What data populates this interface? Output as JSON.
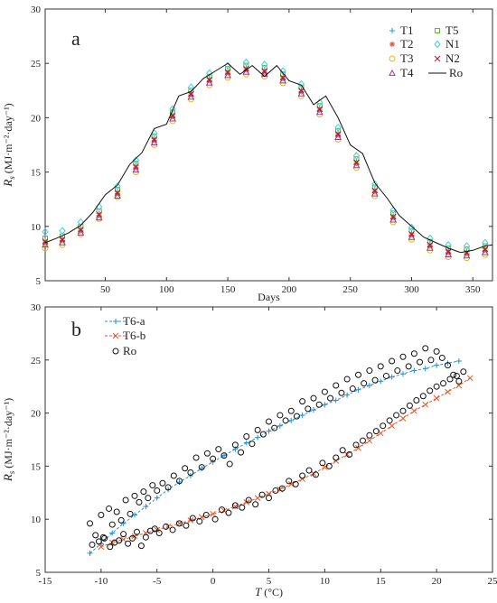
{
  "chart_data": [
    {
      "panel_label": "a",
      "type": "scatter",
      "xlabel": "Days",
      "ylabel": {
        "symbol": "R",
        "sub": "s",
        "unit": "(MJ·m⁻²·day⁻¹)"
      },
      "xlim": [
        1,
        366
      ],
      "ylim": [
        5,
        30
      ],
      "xticks": [
        50,
        100,
        150,
        200,
        250,
        300,
        350
      ],
      "yticks": [
        5,
        10,
        15,
        20,
        25,
        30
      ],
      "legend_position": "top-right",
      "series": [
        {
          "name": "T1",
          "marker": "plus",
          "color": "#1f9bd7",
          "days": [
            1,
            15,
            30,
            45,
            60,
            75,
            90,
            105,
            120,
            135,
            150,
            165,
            180,
            195,
            210,
            225,
            240,
            255,
            270,
            285,
            300,
            315,
            330,
            345,
            360
          ],
          "values": [
            8.7,
            8.9,
            9.8,
            11.2,
            13.2,
            15.6,
            18.1,
            20.3,
            22.3,
            23.6,
            24.3,
            24.6,
            24.4,
            23.8,
            22.6,
            20.9,
            18.6,
            16.0,
            13.4,
            11.0,
            9.4,
            8.4,
            7.8,
            7.7,
            8.0
          ]
        },
        {
          "name": "T2",
          "marker": "asterisk",
          "color": "#e2553a",
          "days": [
            1,
            15,
            30,
            45,
            60,
            75,
            90,
            105,
            120,
            135,
            150,
            165,
            180,
            195,
            210,
            225,
            240,
            255,
            270,
            285,
            300,
            315,
            330,
            345,
            360
          ],
          "values": [
            8.5,
            8.7,
            9.6,
            11.0,
            13.0,
            15.4,
            17.9,
            20.1,
            22.1,
            23.4,
            24.1,
            24.4,
            24.2,
            23.6,
            22.4,
            20.7,
            18.4,
            15.8,
            13.2,
            10.8,
            9.2,
            8.2,
            7.6,
            7.5,
            7.8
          ]
        },
        {
          "name": "T3",
          "marker": "circle",
          "color": "#f0b21b",
          "days": [
            1,
            15,
            30,
            45,
            60,
            75,
            90,
            105,
            120,
            135,
            150,
            165,
            180,
            195,
            210,
            225,
            240,
            255,
            270,
            285,
            300,
            315,
            330,
            345,
            360
          ],
          "values": [
            8.0,
            8.3,
            9.3,
            10.7,
            12.7,
            15.0,
            17.5,
            19.7,
            21.7,
            23.0,
            23.7,
            24.0,
            23.8,
            23.2,
            22.0,
            20.3,
            18.0,
            15.4,
            12.8,
            10.4,
            8.8,
            7.8,
            7.2,
            7.1,
            7.4
          ]
        },
        {
          "name": "T4",
          "marker": "triangle",
          "color": "#8e3f97",
          "days": [
            1,
            15,
            30,
            45,
            60,
            75,
            90,
            105,
            120,
            135,
            150,
            165,
            180,
            195,
            210,
            225,
            240,
            255,
            270,
            285,
            300,
            315,
            330,
            345,
            360
          ],
          "values": [
            8.3,
            8.5,
            9.4,
            10.8,
            12.8,
            15.2,
            17.7,
            19.9,
            21.9,
            23.2,
            23.9,
            24.2,
            24.0,
            23.4,
            22.2,
            20.5,
            18.2,
            15.6,
            13.0,
            10.6,
            9.0,
            8.0,
            7.4,
            7.3,
            7.6
          ]
        },
        {
          "name": "T5",
          "marker": "square",
          "color": "#6ab43e",
          "days": [
            1,
            15,
            30,
            45,
            60,
            75,
            90,
            105,
            120,
            135,
            150,
            165,
            180,
            195,
            210,
            225,
            240,
            255,
            270,
            285,
            300,
            315,
            330,
            345,
            360
          ],
          "values": [
            8.9,
            9.1,
            10.0,
            11.4,
            13.4,
            15.8,
            18.3,
            20.5,
            22.5,
            23.8,
            24.5,
            24.8,
            24.6,
            24.0,
            22.8,
            21.1,
            18.8,
            16.2,
            13.6,
            11.2,
            9.6,
            8.6,
            8.0,
            7.9,
            8.2
          ]
        },
        {
          "name": "N1",
          "marker": "diamond",
          "color": "#3fd0e0",
          "days": [
            1,
            15,
            30,
            45,
            60,
            75,
            90,
            105,
            120,
            135,
            150,
            165,
            180,
            195,
            210,
            225,
            240,
            255,
            270,
            285,
            300,
            315,
            330,
            345,
            360
          ],
          "values": [
            9.5,
            9.6,
            10.4,
            11.8,
            13.7,
            16.1,
            18.6,
            20.8,
            22.8,
            24.1,
            24.8,
            25.1,
            24.9,
            24.3,
            23.1,
            21.4,
            19.1,
            16.5,
            13.9,
            11.5,
            9.9,
            8.9,
            8.3,
            8.2,
            8.5
          ]
        },
        {
          "name": "N2",
          "marker": "cross",
          "color": "#b2182b",
          "days": [
            1,
            15,
            30,
            45,
            60,
            75,
            90,
            105,
            120,
            135,
            150,
            165,
            180,
            195,
            210,
            225,
            240,
            255,
            270,
            285,
            300,
            315,
            330,
            345,
            360
          ],
          "values": [
            8.6,
            8.8,
            9.7,
            11.1,
            13.1,
            15.5,
            18.0,
            20.2,
            22.2,
            23.5,
            24.2,
            24.5,
            24.3,
            23.7,
            22.5,
            20.8,
            18.5,
            15.9,
            13.3,
            10.9,
            9.3,
            8.3,
            7.7,
            7.6,
            7.9
          ]
        },
        {
          "name": "Ro",
          "marker": "line",
          "color": "#111111",
          "days": [
            1,
            10,
            20,
            30,
            40,
            50,
            60,
            70,
            80,
            90,
            100,
            110,
            120,
            130,
            140,
            150,
            160,
            170,
            180,
            190,
            200,
            210,
            220,
            230,
            240,
            250,
            260,
            270,
            280,
            290,
            300,
            310,
            320,
            330,
            340,
            350,
            360,
            366
          ],
          "values": [
            8.5,
            8.9,
            9.4,
            10.1,
            11.3,
            12.9,
            13.8,
            15.7,
            16.8,
            19.0,
            19.4,
            22.0,
            22.4,
            23.6,
            24.3,
            25.0,
            24.0,
            24.8,
            23.8,
            24.8,
            23.4,
            23.0,
            21.2,
            22.0,
            20.0,
            17.5,
            16.7,
            14.0,
            12.6,
            11.0,
            10.0,
            9.0,
            8.5,
            8.0,
            7.6,
            7.8,
            8.2,
            8.3
          ]
        }
      ]
    },
    {
      "panel_label": "b",
      "type": "scatter",
      "xlabel": {
        "symbol": "T",
        "unit": "(°C)"
      },
      "ylabel": {
        "symbol": "R",
        "sub": "s",
        "unit": "(MJ·m⁻²·day⁻¹)"
      },
      "xlim": [
        -15,
        25
      ],
      "ylim": [
        5,
        30
      ],
      "xticks": [
        -15,
        -10,
        -5,
        0,
        5,
        10,
        15,
        20,
        25
      ],
      "yticks": [
        5,
        10,
        15,
        20,
        25,
        30
      ],
      "legend_position": "top-left",
      "series": [
        {
          "name": "T6-a",
          "marker": "line-plus",
          "color": "#2b8fd6",
          "x": [
            -11.0,
            -10.0,
            -9.0,
            -8.0,
            -7.0,
            -6.0,
            -5.0,
            -4.0,
            -3.0,
            -2.0,
            -1.0,
            0.0,
            1.0,
            2.0,
            3.0,
            4.0,
            5.0,
            6.0,
            7.0,
            8.0,
            9.0,
            10.0,
            11.0,
            12.0,
            13.0,
            14.0,
            15.0,
            16.0,
            17.0,
            18.0,
            19.0,
            20.0,
            21.0,
            22.0
          ],
          "y": [
            6.8,
            7.7,
            8.7,
            9.6,
            10.4,
            11.2,
            12.0,
            12.8,
            13.5,
            14.1,
            14.8,
            15.4,
            16.0,
            16.6,
            17.2,
            17.7,
            18.3,
            18.8,
            19.3,
            19.8,
            20.3,
            20.8,
            21.2,
            21.7,
            22.2,
            22.6,
            23.0,
            23.4,
            23.7,
            24.0,
            24.2,
            24.5,
            24.7,
            24.9
          ]
        },
        {
          "name": "T6-b",
          "marker": "line-x",
          "color": "#e05a2c",
          "x": [
            -10.0,
            -9.0,
            -8.0,
            -7.0,
            -6.0,
            -5.0,
            -4.0,
            -3.0,
            -2.0,
            -1.0,
            0.0,
            1.0,
            2.0,
            3.0,
            4.0,
            5.0,
            6.0,
            7.0,
            8.0,
            9.0,
            10.0,
            11.0,
            12.0,
            13.0,
            14.0,
            15.0,
            16.0,
            17.0,
            18.0,
            19.0,
            20.0,
            21.0,
            22.0,
            23.0
          ],
          "y": [
            7.4,
            7.8,
            8.1,
            8.4,
            8.7,
            9.0,
            9.3,
            9.6,
            9.9,
            10.2,
            10.5,
            10.8,
            11.2,
            11.6,
            12.0,
            12.4,
            12.8,
            13.3,
            13.8,
            14.3,
            14.9,
            15.5,
            16.1,
            16.7,
            17.4,
            18.1,
            18.8,
            19.5,
            20.2,
            20.8,
            21.4,
            22.0,
            22.6,
            23.3
          ]
        },
        {
          "name": "Ro",
          "marker": "open-circle",
          "color": "#111111",
          "x": [
            -11,
            -10.5,
            -10,
            -9.7,
            -9.3,
            -9,
            -8.6,
            -8.2,
            -7.8,
            -7.4,
            -7,
            -6.6,
            -6.2,
            -5.8,
            -5.4,
            -5,
            -4.5,
            -4,
            -3.5,
            -3,
            -2.5,
            -2,
            -1.5,
            -1,
            -0.5,
            0,
            0.5,
            1,
            1.5,
            2,
            2.5,
            3,
            3.5,
            4,
            4.5,
            5,
            5.5,
            6,
            6.5,
            7,
            7.5,
            8,
            8.5,
            9,
            9.5,
            10,
            10.5,
            11,
            11.5,
            12,
            12.5,
            13,
            13.5,
            14,
            14.5,
            15,
            15.5,
            16,
            16.5,
            17,
            17.5,
            18,
            18.5,
            19,
            19.5,
            20,
            20.5,
            21,
            21.5,
            22,
            -10.8,
            -10.2,
            -9.8,
            -9.2,
            -8.8,
            -8.4,
            -8,
            -7.6,
            -7.2,
            -6.8,
            -6.4,
            -6,
            -5.6,
            -5.2,
            -4.8,
            -4.2,
            -3.6,
            -3,
            -2.4,
            -1.8,
            -1.2,
            -0.6,
            0.2,
            0.8,
            1.4,
            2,
            2.6,
            3.2,
            3.8,
            4.4,
            5,
            5.6,
            6.2,
            6.8,
            7.4,
            8,
            8.6,
            9.2,
            9.8,
            10.4,
            11,
            11.6,
            12.2,
            12.8,
            13.4,
            14,
            14.6,
            15.2,
            15.8,
            16.4,
            17,
            17.6,
            18.2,
            18.8,
            19.4,
            20,
            20.6,
            21.2,
            21.8,
            22.4
          ],
          "y": [
            9.6,
            8.5,
            10.4,
            8.2,
            11.0,
            9.5,
            10.7,
            9.9,
            11.8,
            10.5,
            12.2,
            11.6,
            12.6,
            12.0,
            13.2,
            12.7,
            13.4,
            13.0,
            14.1,
            13.6,
            14.8,
            14.4,
            15.8,
            14.9,
            16.2,
            15.7,
            16.6,
            16.0,
            15.2,
            17.0,
            16.3,
            17.8,
            17.1,
            18.4,
            18.0,
            19.2,
            18.6,
            19.8,
            19.3,
            20.2,
            19.7,
            21.1,
            20.4,
            21.4,
            20.8,
            22.0,
            21.4,
            22.6,
            21.9,
            23.2,
            22.3,
            23.6,
            22.8,
            24.0,
            23.1,
            24.4,
            23.5,
            24.9,
            24.0,
            25.3,
            24.4,
            25.6,
            24.8,
            26.1,
            25.0,
            25.8,
            25.2,
            24.5,
            23.6,
            23.0,
            7.6,
            7.9,
            8.3,
            7.4,
            7.8,
            8.0,
            8.6,
            7.7,
            8.2,
            8.8,
            7.5,
            8.3,
            8.9,
            9.1,
            8.7,
            9.3,
            9.0,
            9.6,
            9.4,
            10.1,
            9.8,
            10.4,
            10.0,
            10.9,
            10.6,
            11.3,
            11.1,
            11.8,
            11.4,
            12.3,
            12.0,
            12.7,
            12.9,
            13.6,
            13.3,
            14.1,
            14.6,
            14.2,
            15.3,
            15.0,
            15.8,
            16.5,
            16.1,
            17.0,
            17.4,
            17.9,
            18.3,
            18.8,
            19.3,
            19.8,
            20.2,
            20.7,
            21.2,
            21.6,
            22.1,
            22.5,
            22.8,
            23.2,
            23.5,
            23.9
          ]
        }
      ]
    }
  ]
}
